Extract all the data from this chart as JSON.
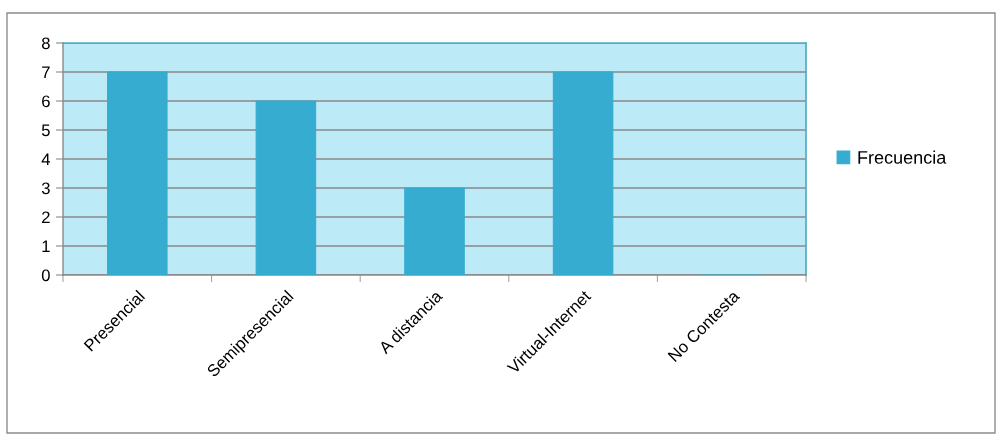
{
  "chart_data": {
    "type": "bar",
    "categories": [
      "Presencial",
      "Semipresencial",
      "A distancia",
      "Virtual-Internet",
      "No Contesta"
    ],
    "series": [
      {
        "name": "Frecuencia",
        "color": "#35acd0",
        "values": [
          7,
          6,
          3,
          7,
          0
        ]
      }
    ],
    "ylim": [
      0,
      8
    ],
    "yticks": [
      0,
      1,
      2,
      3,
      4,
      5,
      6,
      7,
      8
    ],
    "grid": "y",
    "legend": "right"
  }
}
